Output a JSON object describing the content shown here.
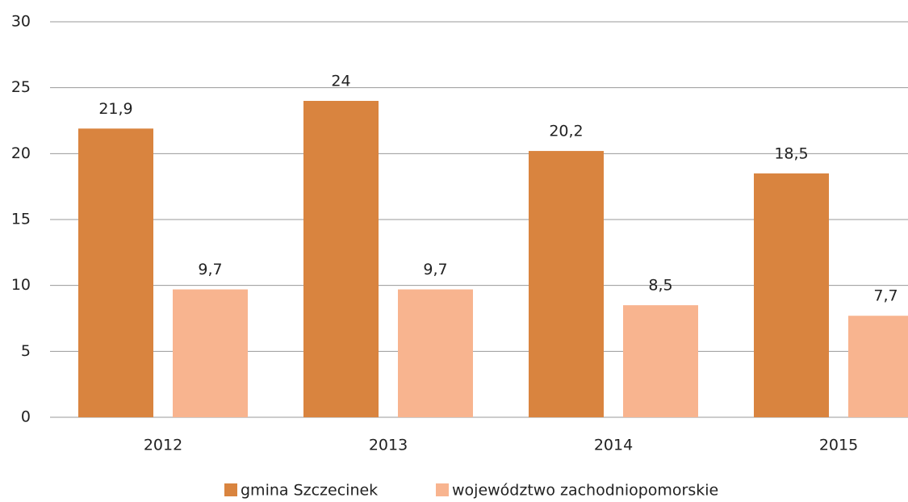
{
  "chart_data": {
    "type": "bar",
    "categories": [
      "2012",
      "2013",
      "2014",
      "2015"
    ],
    "series": [
      {
        "name": "gmina Szczecinek",
        "color": "#d9843f",
        "values": [
          21.9,
          24,
          20.2,
          18.5
        ],
        "value_labels": [
          "21,9",
          "24",
          "20,2",
          "18,5"
        ]
      },
      {
        "name": "województwo zachodniopomorskie",
        "color": "#f8b48f",
        "values": [
          9.7,
          9.7,
          8.5,
          7.7
        ],
        "value_labels": [
          "9,7",
          "9,7",
          "8,5",
          "7,7"
        ]
      }
    ],
    "ylim": [
      0,
      30
    ],
    "yticks": [
      0,
      5,
      10,
      15,
      20,
      25,
      30
    ],
    "grid": true,
    "legend": "bottom"
  }
}
